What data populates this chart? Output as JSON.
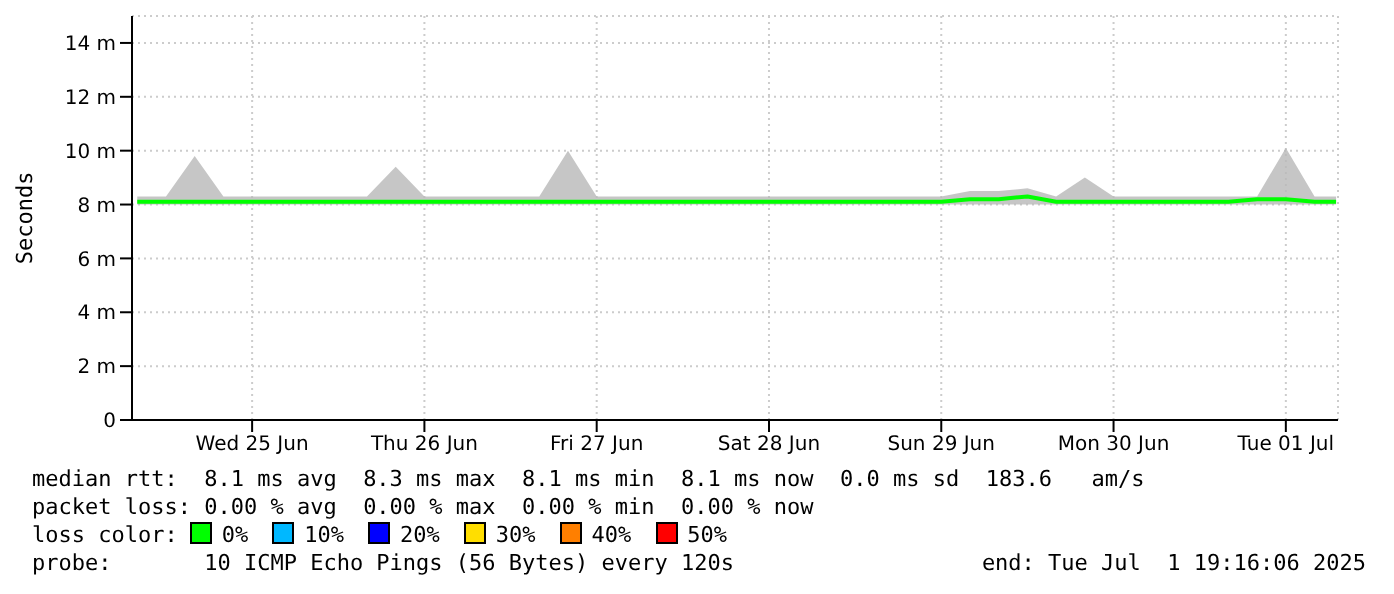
{
  "chart_data": {
    "type": "line",
    "ylabel": "Seconds",
    "x": [
      "2025-06-24T20:00",
      "2025-06-25T00:00",
      "2025-06-25T04:00",
      "2025-06-25T08:00",
      "2025-06-25T12:00",
      "2025-06-25T16:00",
      "2025-06-25T20:00",
      "2025-06-26T00:00",
      "2025-06-26T04:00",
      "2025-06-26T08:00",
      "2025-06-26T12:00",
      "2025-06-26T16:00",
      "2025-06-26T20:00",
      "2025-06-27T00:00",
      "2025-06-27T04:00",
      "2025-06-27T08:00",
      "2025-06-27T12:00",
      "2025-06-27T16:00",
      "2025-06-27T20:00",
      "2025-06-28T00:00",
      "2025-06-28T04:00",
      "2025-06-28T08:00",
      "2025-06-28T12:00",
      "2025-06-28T16:00",
      "2025-06-28T20:00",
      "2025-06-29T00:00",
      "2025-06-29T04:00",
      "2025-06-29T08:00",
      "2025-06-29T12:00",
      "2025-06-29T16:00",
      "2025-06-29T20:00",
      "2025-06-30T00:00",
      "2025-06-30T04:00",
      "2025-06-30T08:00",
      "2025-06-30T12:00",
      "2025-06-30T16:00",
      "2025-06-30T20:00",
      "2025-07-01T00:00",
      "2025-07-01T04:00",
      "2025-07-01T08:00",
      "2025-07-01T12:00",
      "2025-07-01T16:00",
      "2025-07-01T19:00"
    ],
    "series": [
      {
        "name": "0%",
        "color": "#00ff00",
        "values": [
          8.1,
          8.1,
          8.1,
          8.1,
          8.1,
          8.1,
          8.1,
          8.1,
          8.1,
          8.1,
          8.1,
          8.1,
          8.1,
          8.1,
          8.1,
          8.1,
          8.1,
          8.1,
          8.1,
          8.1,
          8.1,
          8.1,
          8.1,
          8.1,
          8.1,
          8.1,
          8.1,
          8.1,
          8.1,
          8.2,
          8.2,
          8.3,
          8.1,
          8.1,
          8.1,
          8.1,
          8.1,
          8.1,
          8.1,
          8.2,
          8.2,
          8.1,
          8.1
        ],
        "lower": [
          8.0,
          8.0,
          8.0,
          8.0,
          8.0,
          8.0,
          8.0,
          8.0,
          8.0,
          8.0,
          8.0,
          8.0,
          8.0,
          8.0,
          8.0,
          8.0,
          8.0,
          8.0,
          8.0,
          8.0,
          8.0,
          8.0,
          8.0,
          8.0,
          8.0,
          8.0,
          8.0,
          8.0,
          8.0,
          8.0,
          8.0,
          8.0,
          8.0,
          8.0,
          8.0,
          8.0,
          8.0,
          8.0,
          8.0,
          8.0,
          8.0,
          8.0,
          8.0
        ],
        "upper": [
          8.3,
          8.3,
          9.8,
          8.3,
          8.3,
          8.3,
          8.3,
          8.3,
          8.3,
          9.4,
          8.3,
          8.3,
          8.3,
          8.3,
          8.3,
          10.0,
          8.3,
          8.3,
          8.3,
          8.3,
          8.3,
          8.3,
          8.3,
          8.3,
          8.3,
          8.3,
          8.3,
          8.3,
          8.3,
          8.5,
          8.5,
          8.6,
          8.3,
          9.0,
          8.3,
          8.3,
          8.3,
          8.3,
          8.3,
          8.3,
          10.1,
          8.3,
          8.3
        ]
      },
      {
        "name": "10%",
        "color": "#00b8ff",
        "values": [
          null,
          null,
          null,
          null,
          null,
          null,
          null,
          null,
          null,
          null,
          null,
          null,
          null,
          null,
          null,
          null,
          null,
          null,
          null,
          null,
          null,
          null,
          null,
          null,
          null,
          null,
          null,
          null,
          null,
          null,
          null,
          null,
          null,
          null,
          null,
          null,
          null,
          null,
          null,
          null,
          null,
          null,
          null
        ]
      },
      {
        "name": "20%",
        "color": "#0000ff",
        "values": [
          null,
          null,
          null,
          null,
          null,
          null,
          null,
          null,
          null,
          null,
          null,
          null,
          null,
          null,
          null,
          null,
          null,
          null,
          null,
          null,
          null,
          null,
          null,
          null,
          null,
          null,
          null,
          null,
          null,
          null,
          null,
          null,
          null,
          null,
          null,
          null,
          null,
          null,
          null,
          null,
          null,
          null,
          null
        ]
      },
      {
        "name": "30%",
        "color": "#ffde00",
        "values": [
          null,
          null,
          null,
          null,
          null,
          null,
          null,
          null,
          null,
          null,
          null,
          null,
          null,
          null,
          null,
          null,
          null,
          null,
          null,
          null,
          null,
          null,
          null,
          null,
          null,
          null,
          null,
          null,
          null,
          null,
          null,
          null,
          null,
          null,
          null,
          null,
          null,
          null,
          null,
          null,
          null,
          null,
          null
        ]
      },
      {
        "name": "40%",
        "color": "#ff7f00",
        "values": [
          null,
          null,
          null,
          null,
          null,
          null,
          null,
          null,
          null,
          null,
          null,
          null,
          null,
          null,
          null,
          null,
          null,
          null,
          null,
          null,
          null,
          null,
          null,
          null,
          null,
          null,
          null,
          null,
          null,
          null,
          null,
          null,
          null,
          null,
          null,
          null,
          null,
          null,
          null,
          null,
          null,
          null,
          null
        ]
      },
      {
        "name": "50%",
        "color": "#ff0000",
        "values": [
          null,
          null,
          null,
          null,
          null,
          null,
          null,
          null,
          null,
          null,
          null,
          null,
          null,
          null,
          null,
          null,
          null,
          null,
          null,
          null,
          null,
          null,
          null,
          null,
          null,
          null,
          null,
          null,
          null,
          null,
          null,
          null,
          null,
          null,
          null,
          null,
          null,
          null,
          null,
          null,
          null,
          null,
          null
        ]
      }
    ],
    "xlim": [
      "2025-06-24T19:16",
      "2025-07-01T19:16"
    ],
    "xticks": [
      {
        "value": "2025-06-25T12:00",
        "label": "Wed 25 Jun"
      },
      {
        "value": "2025-06-26T12:00",
        "label": "Thu 26 Jun"
      },
      {
        "value": "2025-06-27T12:00",
        "label": "Fri 27 Jun"
      },
      {
        "value": "2025-06-28T12:00",
        "label": "Sat 28 Jun"
      },
      {
        "value": "2025-06-29T12:00",
        "label": "Sun 29 Jun"
      },
      {
        "value": "2025-06-30T12:00",
        "label": "Mon 30 Jun"
      },
      {
        "value": "2025-07-01T12:00",
        "label": "Tue 01 Jul"
      }
    ],
    "ylim": [
      0,
      15
    ],
    "yticks": [
      0,
      {
        "value": 2,
        "label": "2 m"
      },
      {
        "value": 4,
        "label": "4 m"
      },
      {
        "value": 6,
        "label": "6 m"
      },
      {
        "value": 8,
        "label": "8 m"
      },
      {
        "value": 10,
        "label": "10 m"
      },
      {
        "value": 12,
        "label": "12 m"
      },
      {
        "value": 14,
        "label": "14 m"
      }
    ],
    "grid": true,
    "legend": "bottom",
    "marker": "none",
    "line_style": "solid",
    "annotations": [
      "median rtt:  8.1 ms avg  8.3 ms max  8.1 ms min  8.1 ms now  0.0 ms sd  183.6   am/s",
      "packet loss: 0.00 % avg  0.00 % max  0.00 % min  0.00 % now",
      "loss color:",
      "probe:       10 ICMP Echo Pings (56 Bytes) every 120s",
      "end: Tue Jul  1 19:16:06 2025"
    ]
  }
}
